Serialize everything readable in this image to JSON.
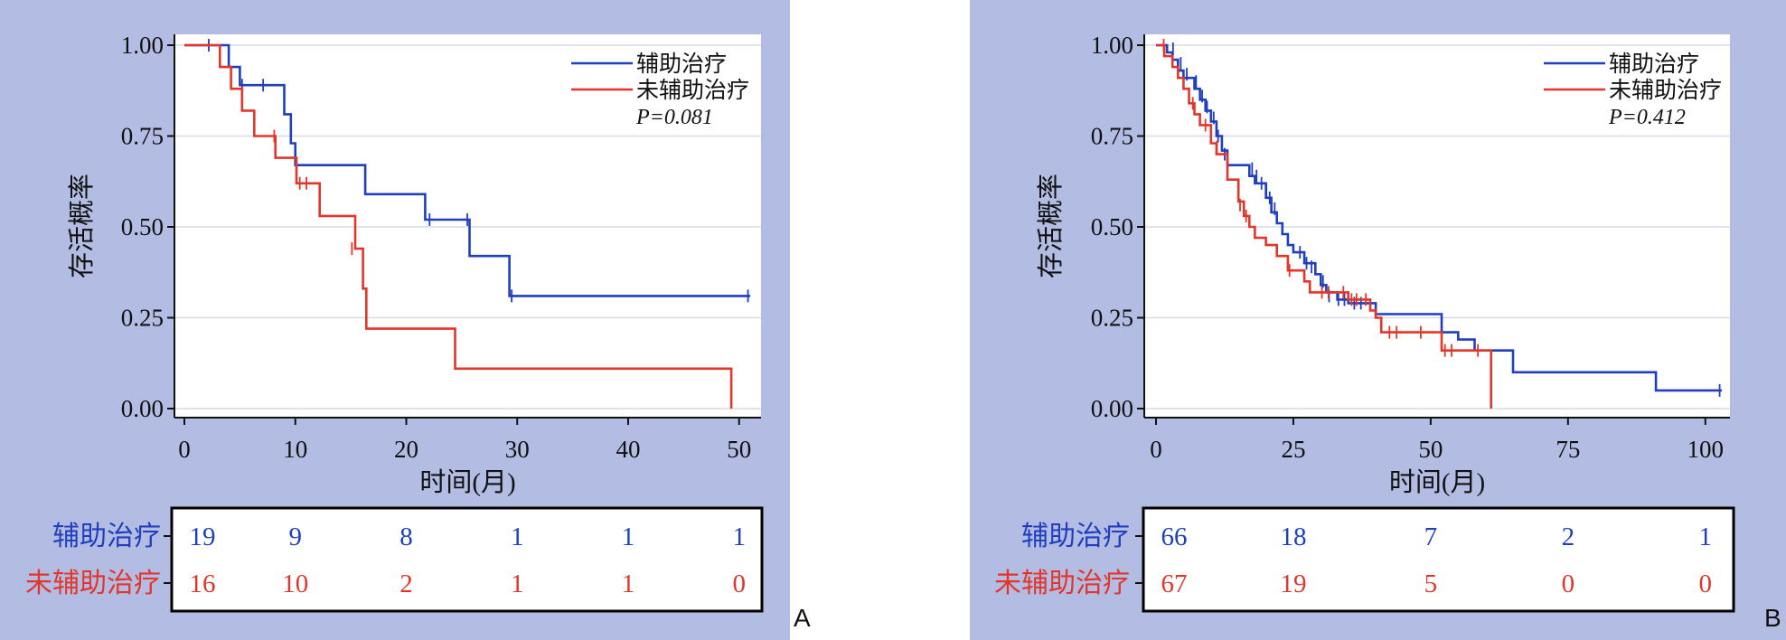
{
  "colors": {
    "blue": "#1f3fbf",
    "red": "#e2362b",
    "axis": "#111111",
    "grid": "#d8dbe6",
    "background": "#b3bce3"
  },
  "chart_data": [
    {
      "panel_label": "A",
      "type": "line",
      "subtype": "kaplan-meier-step",
      "xlabel": "时间(月)",
      "ylabel": "存活概率",
      "xlim": [
        0,
        51
      ],
      "ylim": [
        0,
        1
      ],
      "xticks": [
        0,
        10,
        20,
        30,
        40,
        50
      ],
      "yticks": [
        "0.00",
        "0.25",
        "0.50",
        "0.75",
        "1.00"
      ],
      "grid": true,
      "legend_position": "top-right",
      "p_value": "P=0.081",
      "series": [
        {
          "name": "辅助治疗",
          "color": "#1f3fbf",
          "steps": [
            [
              0,
              1.0
            ],
            [
              4,
              1.0
            ],
            [
              4,
              0.94
            ],
            [
              5,
              0.94
            ],
            [
              5,
              0.89
            ],
            [
              9,
              0.89
            ],
            [
              9,
              0.81
            ],
            [
              9.6,
              0.81
            ],
            [
              9.6,
              0.73
            ],
            [
              10,
              0.73
            ],
            [
              10,
              0.67
            ],
            [
              16.3,
              0.67
            ],
            [
              16.3,
              0.59
            ],
            [
              21.7,
              0.59
            ],
            [
              21.7,
              0.52
            ],
            [
              25.7,
              0.52
            ],
            [
              25.7,
              0.42
            ],
            [
              29.3,
              0.42
            ],
            [
              29.3,
              0.31
            ],
            [
              51,
              0.31
            ]
          ],
          "censored": [
            [
              2.2,
              1.0
            ],
            [
              5.2,
              0.89
            ],
            [
              7.1,
              0.89
            ],
            [
              22.1,
              0.52
            ],
            [
              25.5,
              0.52
            ],
            [
              29.5,
              0.31
            ],
            [
              50.8,
              0.31
            ]
          ]
        },
        {
          "name": "未辅助治疗",
          "color": "#e2362b",
          "steps": [
            [
              0,
              1.0
            ],
            [
              3.2,
              1.0
            ],
            [
              3.2,
              0.94
            ],
            [
              4.2,
              0.94
            ],
            [
              4.2,
              0.88
            ],
            [
              5.2,
              0.88
            ],
            [
              5.2,
              0.82
            ],
            [
              6.3,
              0.82
            ],
            [
              6.3,
              0.75
            ],
            [
              8.2,
              0.75
            ],
            [
              8.2,
              0.69
            ],
            [
              10.1,
              0.69
            ],
            [
              10.1,
              0.62
            ],
            [
              12.2,
              0.62
            ],
            [
              12.2,
              0.53
            ],
            [
              15.4,
              0.53
            ],
            [
              15.4,
              0.44
            ],
            [
              16.1,
              0.44
            ],
            [
              16.1,
              0.33
            ],
            [
              16.4,
              0.33
            ],
            [
              16.4,
              0.22
            ],
            [
              24.4,
              0.22
            ],
            [
              24.4,
              0.11
            ],
            [
              49.3,
              0.11
            ],
            [
              49.3,
              0.0
            ]
          ],
          "censored": [
            [
              8.1,
              0.75
            ],
            [
              10.4,
              0.62
            ],
            [
              11.0,
              0.62
            ],
            [
              15.1,
              0.44
            ]
          ]
        }
      ],
      "risk_table": {
        "times": [
          0,
          10,
          20,
          30,
          40,
          50
        ],
        "rows": [
          {
            "label": "辅助治疗",
            "color": "#1f3fbf",
            "values": [
              "19",
              "9",
              "8",
              "1",
              "1",
              "1"
            ]
          },
          {
            "label": "未辅助治疗",
            "color": "#e2362b",
            "values": [
              "16",
              "10",
              "2",
              "1",
              "1",
              "0"
            ]
          }
        ]
      }
    },
    {
      "panel_label": "B",
      "type": "line",
      "subtype": "kaplan-meier-step",
      "xlabel": "时间(月)",
      "ylabel": "存活概率",
      "xlim": [
        0,
        103
      ],
      "ylim": [
        0,
        1
      ],
      "xticks": [
        0,
        25,
        50,
        75,
        100
      ],
      "yticks": [
        "0.00",
        "0.25",
        "0.50",
        "0.75",
        "1.00"
      ],
      "grid": true,
      "legend_position": "top-right",
      "p_value": "P=0.412",
      "series": [
        {
          "name": "辅助治疗",
          "color": "#1f3fbf",
          "steps": [
            [
              0,
              1.0
            ],
            [
              2,
              1.0
            ],
            [
              2,
              0.98
            ],
            [
              3,
              0.98
            ],
            [
              3,
              0.96
            ],
            [
              4,
              0.96
            ],
            [
              4,
              0.93
            ],
            [
              5,
              0.93
            ],
            [
              5,
              0.91
            ],
            [
              7,
              0.91
            ],
            [
              7,
              0.88
            ],
            [
              8,
              0.88
            ],
            [
              8,
              0.85
            ],
            [
              9,
              0.85
            ],
            [
              9,
              0.82
            ],
            [
              10,
              0.82
            ],
            [
              10,
              0.79
            ],
            [
              11,
              0.79
            ],
            [
              11,
              0.75
            ],
            [
              12,
              0.75
            ],
            [
              12,
              0.71
            ],
            [
              13,
              0.71
            ],
            [
              13,
              0.67
            ],
            [
              17,
              0.67
            ],
            [
              17,
              0.64
            ],
            [
              18,
              0.64
            ],
            [
              18,
              0.62
            ],
            [
              20,
              0.62
            ],
            [
              20,
              0.58
            ],
            [
              21,
              0.58
            ],
            [
              21,
              0.54
            ],
            [
              22,
              0.54
            ],
            [
              22,
              0.51
            ],
            [
              23,
              0.51
            ],
            [
              23,
              0.48
            ],
            [
              24,
              0.48
            ],
            [
              24,
              0.45
            ],
            [
              25,
              0.45
            ],
            [
              25,
              0.43
            ],
            [
              27,
              0.43
            ],
            [
              27,
              0.4
            ],
            [
              29,
              0.4
            ],
            [
              29,
              0.37
            ],
            [
              30,
              0.37
            ],
            [
              30,
              0.34
            ],
            [
              31,
              0.34
            ],
            [
              31,
              0.32
            ],
            [
              33,
              0.32
            ],
            [
              33,
              0.3
            ],
            [
              35,
              0.3
            ],
            [
              35,
              0.29
            ],
            [
              40,
              0.29
            ],
            [
              40,
              0.26
            ],
            [
              52,
              0.26
            ],
            [
              52,
              0.21
            ],
            [
              55,
              0.21
            ],
            [
              55,
              0.19
            ],
            [
              58,
              0.19
            ],
            [
              58,
              0.16
            ],
            [
              65,
              0.16
            ],
            [
              65,
              0.1
            ],
            [
              91,
              0.1
            ],
            [
              91,
              0.05
            ],
            [
              103,
              0.05
            ]
          ],
          "censored": [
            [
              3.1,
              0.99
            ],
            [
              4.5,
              0.95
            ],
            [
              5.6,
              0.92
            ],
            [
              7.3,
              0.9
            ],
            [
              8.4,
              0.86
            ],
            [
              9.3,
              0.83
            ],
            [
              10.5,
              0.8
            ],
            [
              11.3,
              0.75
            ],
            [
              12.5,
              0.7
            ],
            [
              17.5,
              0.66
            ],
            [
              18.3,
              0.64
            ],
            [
              19.2,
              0.62
            ],
            [
              20.1,
              0.6
            ],
            [
              20.7,
              0.58
            ],
            [
              21.6,
              0.55
            ],
            [
              26.2,
              0.43
            ],
            [
              27.4,
              0.4
            ],
            [
              28.3,
              0.39
            ],
            [
              30.4,
              0.35
            ],
            [
              31.5,
              0.31
            ],
            [
              33.2,
              0.3
            ],
            [
              34.3,
              0.3
            ],
            [
              36.1,
              0.29
            ],
            [
              37.3,
              0.29
            ],
            [
              102.6,
              0.05
            ]
          ]
        },
        {
          "name": "未辅助治疗",
          "color": "#e2362b",
          "steps": [
            [
              0,
              1.0
            ],
            [
              1.5,
              1.0
            ],
            [
              1.5,
              0.97
            ],
            [
              3,
              0.97
            ],
            [
              3,
              0.94
            ],
            [
              4,
              0.94
            ],
            [
              4,
              0.91
            ],
            [
              5,
              0.91
            ],
            [
              5,
              0.88
            ],
            [
              6,
              0.88
            ],
            [
              6,
              0.84
            ],
            [
              7,
              0.84
            ],
            [
              7,
              0.81
            ],
            [
              8,
              0.81
            ],
            [
              8,
              0.78
            ],
            [
              10,
              0.78
            ],
            [
              10,
              0.73
            ],
            [
              11,
              0.73
            ],
            [
              11,
              0.7
            ],
            [
              13,
              0.7
            ],
            [
              13,
              0.63
            ],
            [
              15,
              0.63
            ],
            [
              15,
              0.57
            ],
            [
              16,
              0.57
            ],
            [
              16,
              0.53
            ],
            [
              17,
              0.53
            ],
            [
              17,
              0.5
            ],
            [
              18,
              0.5
            ],
            [
              18,
              0.47
            ],
            [
              20,
              0.47
            ],
            [
              20,
              0.45
            ],
            [
              22,
              0.45
            ],
            [
              22,
              0.42
            ],
            [
              24,
              0.42
            ],
            [
              24,
              0.38
            ],
            [
              27,
              0.38
            ],
            [
              27,
              0.35
            ],
            [
              28,
              0.35
            ],
            [
              28,
              0.32
            ],
            [
              35,
              0.32
            ],
            [
              35,
              0.3
            ],
            [
              39,
              0.3
            ],
            [
              39,
              0.27
            ],
            [
              40,
              0.27
            ],
            [
              40,
              0.25
            ],
            [
              41,
              0.25
            ],
            [
              41,
              0.21
            ],
            [
              52,
              0.21
            ],
            [
              52,
              0.16
            ],
            [
              61,
              0.16
            ],
            [
              61,
              0.0
            ]
          ],
          "censored": [
            [
              1.4,
              1.0
            ],
            [
              6.7,
              0.84
            ],
            [
              9.0,
              0.78
            ],
            [
              11.1,
              0.72
            ],
            [
              15.3,
              0.56
            ],
            [
              16.4,
              0.53
            ],
            [
              24.3,
              0.38
            ],
            [
              30.2,
              0.32
            ],
            [
              31.4,
              0.32
            ],
            [
              34.1,
              0.32
            ],
            [
              35.6,
              0.3
            ],
            [
              36.5,
              0.3
            ],
            [
              38.2,
              0.3
            ],
            [
              42.5,
              0.21
            ],
            [
              43.8,
              0.21
            ],
            [
              48.2,
              0.21
            ],
            [
              52.6,
              0.16
            ],
            [
              53.8,
              0.16
            ],
            [
              58.6,
              0.16
            ]
          ]
        }
      ],
      "risk_table": {
        "times": [
          0,
          25,
          50,
          75,
          100
        ],
        "rows": [
          {
            "label": "辅助治疗",
            "color": "#1f3fbf",
            "values": [
              "66",
              "18",
              "7",
              "2",
              "1"
            ]
          },
          {
            "label": "未辅助治疗",
            "color": "#e2362b",
            "values": [
              "67",
              "19",
              "5",
              "0",
              "0"
            ]
          }
        ]
      }
    }
  ]
}
